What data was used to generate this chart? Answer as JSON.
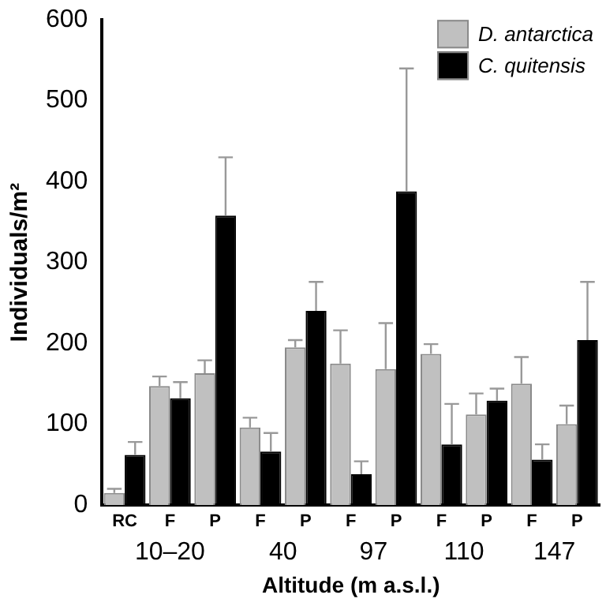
{
  "chart_data": {
    "type": "bar",
    "xlabel": "Altitude (m a.s.l.)",
    "ylabel": "Individuals/m²",
    "categories": [
      "RC",
      "F",
      "P",
      "F",
      "P",
      "F",
      "P",
      "F",
      "P",
      "F",
      "P"
    ],
    "series": [
      {
        "name": "D. antarctica",
        "color": "#c0c0c0",
        "values": [
          15,
          147,
          163,
          96,
          195,
          175,
          168,
          187,
          112,
          150,
          100
        ],
        "errors": [
          [
            15,
            20
          ],
          [
            147,
            159
          ],
          [
            163,
            179
          ],
          [
            96,
            108
          ],
          [
            195,
            204
          ],
          [
            175,
            216
          ],
          [
            168,
            225
          ],
          [
            187,
            199
          ],
          [
            112,
            138
          ],
          [
            150,
            183
          ],
          [
            100,
            123
          ]
        ]
      },
      {
        "name": "C. quitensis",
        "color": "#000000",
        "values": [
          62,
          132,
          358,
          66,
          240,
          38,
          388,
          75,
          129,
          56,
          204
        ],
        "errors": [
          [
            62,
            78
          ],
          [
            132,
            152
          ],
          [
            358,
            430
          ],
          [
            66,
            89
          ],
          [
            240,
            276
          ],
          [
            38,
            54
          ],
          [
            388,
            540
          ],
          [
            75,
            125
          ],
          [
            129,
            144
          ],
          [
            56,
            75
          ],
          [
            204,
            276
          ]
        ]
      }
    ],
    "annotations": [
      "10–20",
      "40",
      "97",
      "110",
      "147"
    ],
    "ylim": [
      0,
      600
    ],
    "yticks": [
      0,
      100,
      200,
      300,
      400,
      500,
      600
    ],
    "grid": false,
    "legend": "top right"
  }
}
